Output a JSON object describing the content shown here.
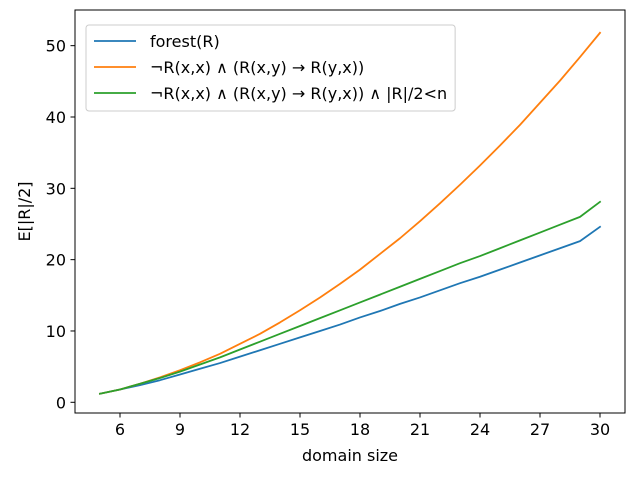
{
  "chart_data": {
    "type": "line",
    "xlabel": "domain size",
    "ylabel": "E[|R|/2]",
    "xlim": [
      3.75,
      31.25
    ],
    "ylim": [
      -1.5,
      55
    ],
    "xticks": [
      6,
      9,
      12,
      15,
      18,
      21,
      24,
      27,
      30
    ],
    "yticks": [
      0,
      10,
      20,
      30,
      40,
      50
    ],
    "grid": false,
    "legend_position": "upper-left",
    "x": [
      5,
      6,
      7,
      8,
      9,
      10,
      11,
      12,
      13,
      14,
      15,
      16,
      17,
      18,
      19,
      20,
      21,
      22,
      23,
      24,
      25,
      26,
      27,
      28,
      29,
      30
    ],
    "series": [
      {
        "name": "forest(R)",
        "color": "#1f77b4",
        "values": [
          1.2,
          1.8,
          2.4,
          3.1,
          3.9,
          4.7,
          5.5,
          6.4,
          7.3,
          8.2,
          9.1,
          10.0,
          10.9,
          11.9,
          12.8,
          13.8,
          14.7,
          15.7,
          16.7,
          17.6,
          18.6,
          19.6,
          20.6,
          21.6,
          22.6,
          24.6
        ]
      },
      {
        "name": "¬R(x,x) ∧ (R(x,y) → R(y,x))",
        "color": "#ff7f0e",
        "values": [
          1.2,
          1.8,
          2.6,
          3.5,
          4.5,
          5.6,
          6.8,
          8.2,
          9.6,
          11.2,
          12.9,
          14.7,
          16.6,
          18.6,
          20.8,
          23.0,
          25.4,
          27.9,
          30.5,
          33.2,
          36.0,
          38.9,
          42.0,
          45.1,
          48.4,
          51.8
        ]
      },
      {
        "name": "¬R(x,x) ∧ (R(x,y) → R(y,x)) ∧ |R|/2<n",
        "color": "#2ca02c",
        "values": [
          1.2,
          1.8,
          2.6,
          3.4,
          4.3,
          5.3,
          6.3,
          7.4,
          8.5,
          9.6,
          10.7,
          11.8,
          12.9,
          14.0,
          15.1,
          16.2,
          17.3,
          18.4,
          19.5,
          20.5,
          21.6,
          22.7,
          23.8,
          24.9,
          26.0,
          28.1
        ]
      }
    ]
  }
}
